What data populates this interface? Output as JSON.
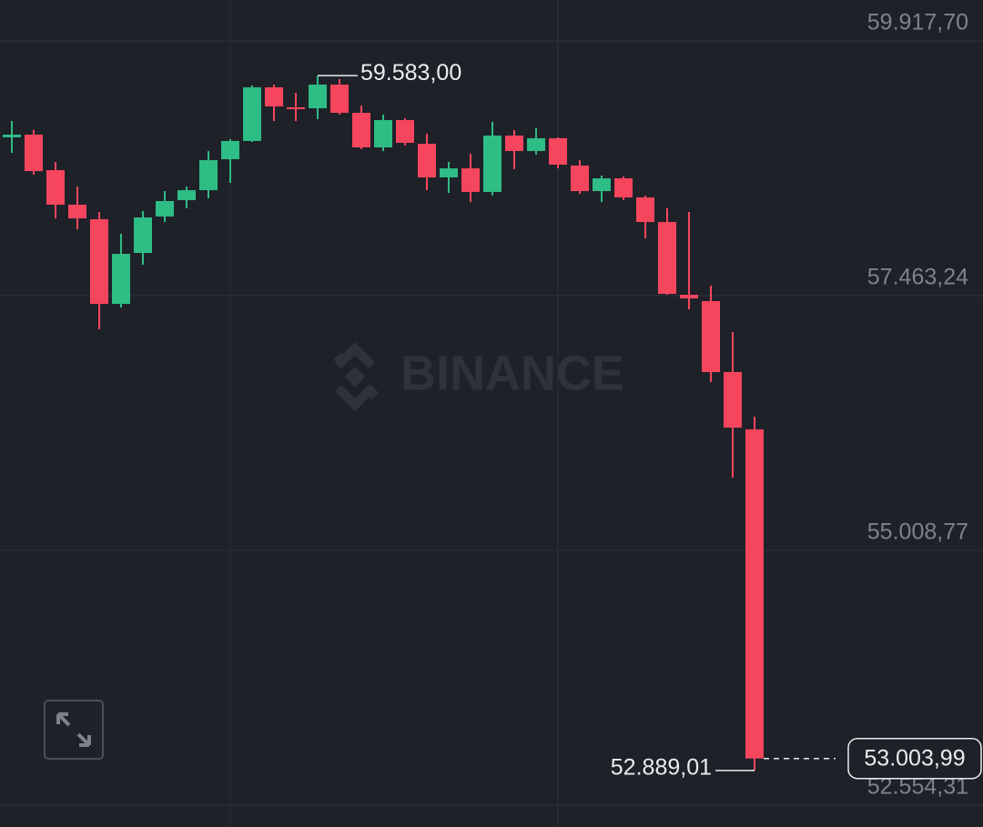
{
  "chart_data": {
    "type": "candlestick",
    "watermark": "BINANCE",
    "categories": [
      null,
      null,
      null,
      null,
      null,
      null,
      null,
      null,
      null,
      null,
      null,
      null,
      null,
      null,
      null,
      null,
      null,
      null,
      null,
      null,
      null,
      null,
      null,
      null,
      null,
      null,
      null,
      null,
      null,
      null,
      null,
      null,
      null,
      null,
      null
    ],
    "open": [
      58989,
      59015,
      58673,
      58340,
      58200,
      57384,
      57875,
      58226,
      58384,
      58480,
      58778,
      58954,
      59471,
      59278,
      59269,
      59497,
      59225,
      58892,
      59155,
      58927,
      58603,
      58690,
      58463,
      59006,
      58857,
      58980,
      58717,
      58471,
      58594,
      58410,
      58173,
      57472,
      57411,
      56727,
      56175
    ],
    "high": [
      59146,
      59059,
      58752,
      58515,
      58270,
      58059,
      58279,
      58471,
      58515,
      58857,
      58971,
      59488,
      59497,
      59418,
      59583,
      59550,
      59295,
      59208,
      59173,
      59024,
      58752,
      58831,
      59138,
      59059,
      59076,
      58989,
      58769,
      58620,
      58612,
      58428,
      58305,
      58270,
      57560,
      57113,
      56297
    ],
    "low": [
      58840,
      58629,
      58208,
      58103,
      57139,
      57349,
      57761,
      58173,
      58305,
      58401,
      58550,
      58945,
      59146,
      59146,
      59164,
      59208,
      58875,
      58857,
      58910,
      58480,
      58454,
      58366,
      58428,
      58682,
      58822,
      58690,
      58445,
      58366,
      58384,
      58016,
      57472,
      57332,
      56631,
      55710,
      52889.01
    ],
    "close": [
      59015,
      58664,
      58340,
      58208,
      57384,
      57866,
      58217,
      58375,
      58480,
      58769,
      58954,
      59471,
      59287,
      59269,
      59497,
      59225,
      58892,
      59155,
      58936,
      58603,
      58690,
      58463,
      59006,
      58857,
      58980,
      58726,
      58471,
      58594,
      58410,
      58173,
      57481,
      57437,
      56727,
      56192,
      53003.99
    ],
    "up_color": "#2ebd85",
    "down_color": "#f6465d",
    "ylim": [
      52343.9,
      60312.2
    ],
    "yticks": [
      {
        "value": 59917.7,
        "label": "59.917,70"
      },
      {
        "value": 57463.24,
        "label": "57.463,24"
      },
      {
        "value": 55008.77,
        "label": "55.008,77"
      },
      {
        "value": 52554.31,
        "label": "52.554,31"
      }
    ],
    "grid": true,
    "high_label": {
      "value": 59583,
      "label": "59.583,00"
    },
    "low_label": {
      "value": 52889.01,
      "label": "52.889,01"
    },
    "last_price": {
      "value": 53003.99,
      "label": "53.003,99"
    }
  }
}
